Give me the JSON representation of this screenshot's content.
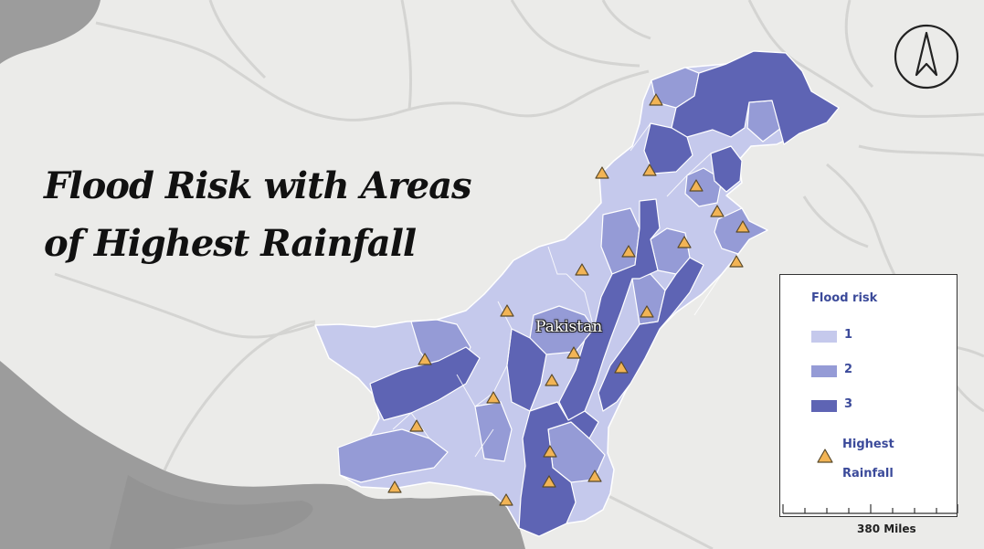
{
  "title": {
    "line1": "Flood Risk with Areas",
    "line2": "of Highest Rainfall"
  },
  "country_label": "Pakistan",
  "legend": {
    "title": "Flood risk",
    "classes": [
      {
        "label": "1",
        "color": "#c5c9ec"
      },
      {
        "label": "2",
        "color": "#959bd6"
      },
      {
        "label": "3",
        "color": "#5e64b4"
      }
    ],
    "rainfall_line1": "Highest",
    "rainfall_line2": "Rainfall",
    "rainfall_color": "#f2b455"
  },
  "scale_label": "380 Miles",
  "colors": {
    "land": "#ebebe9",
    "sea": "#9c9c9c",
    "border": "#d2d2d0",
    "district_line": "#ffffff",
    "text_accent": "#3b4a9a"
  }
}
